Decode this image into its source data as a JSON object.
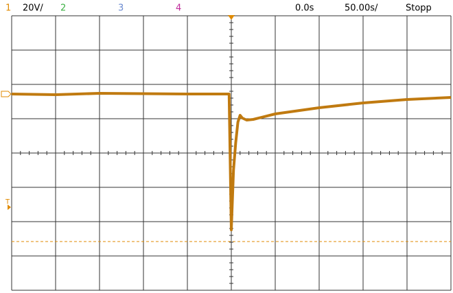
{
  "header": {
    "channels": [
      {
        "label": "1",
        "color": "#e08a00"
      },
      {
        "label": "2",
        "color": "#3cb043"
      },
      {
        "label": "3",
        "color": "#6a8ad0"
      },
      {
        "label": "4",
        "color": "#c02a9a"
      }
    ],
    "scale": "20V/",
    "delay": "0.0s",
    "timebase": "50.00s/",
    "status": "Stopp"
  },
  "chart_data": {
    "type": "line",
    "x": [
      -5,
      -4,
      -3,
      -2,
      -1,
      -0.05,
      0,
      0.05,
      0.1,
      0.15,
      0.2,
      0.25,
      0.35,
      0.5,
      1,
      2,
      3,
      4,
      5
    ],
    "values": [
      1.72,
      1.7,
      1.74,
      1.73,
      1.72,
      1.72,
      -2.24,
      -0.5,
      0.3,
      0.9,
      1.1,
      1.02,
      0.96,
      0.98,
      1.14,
      1.32,
      1.46,
      1.56,
      1.62
    ],
    "color": "#c07a10",
    "xlim": [
      -5,
      5
    ],
    "ylim": [
      -4,
      4
    ],
    "grid": true,
    "trigger_level": -2.58,
    "ground_level": 1.72,
    "trigger_marker": "T"
  }
}
